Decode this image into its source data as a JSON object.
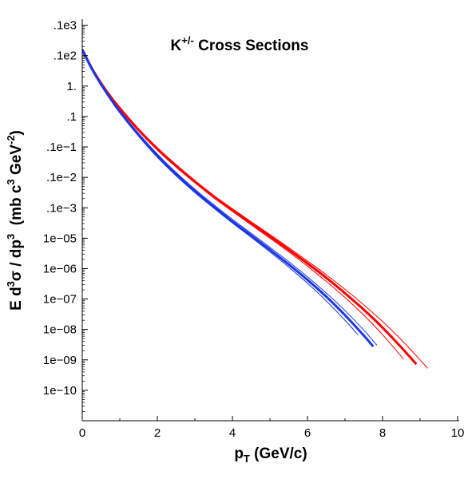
{
  "chart_data": {
    "type": "line",
    "title": "K",
    "title_superscript": "+/-",
    "title_suffix": " Cross Sections",
    "xlabel_main": "p",
    "xlabel_sub": "T",
    "xlabel_rest": " (GeV/c)",
    "ylabel_parts": [
      "E d",
      "3",
      "σ / dp",
      "3",
      "  (mb c",
      "3",
      " GeV",
      "-2",
      ")"
    ],
    "y_scale": "log",
    "xlim": [
      0,
      10
    ],
    "ylim_exponent": [
      -10,
      3.2
    ],
    "grid": false,
    "legend": "none",
    "x_ticks": [
      {
        "value": 0,
        "label": "0"
      },
      {
        "value": 2,
        "label": "2"
      },
      {
        "value": 4,
        "label": "4"
      },
      {
        "value": 6,
        "label": "6"
      },
      {
        "value": 8,
        "label": "8"
      },
      {
        "value": 10,
        "label": "10"
      }
    ],
    "y_ticks": [
      {
        "exp": 3,
        "label": ".1e3"
      },
      {
        "exp": 2,
        "label": ".1e2"
      },
      {
        "exp": 1,
        "label": "1."
      },
      {
        "exp": 0,
        "label": ".1"
      },
      {
        "exp": -1,
        "label": ".1e−1"
      },
      {
        "exp": -2,
        "label": ".1e−2"
      },
      {
        "exp": -3,
        "label": ".1e−3"
      },
      {
        "exp": -4,
        "label": "1e−05"
      },
      {
        "exp": -5,
        "label": "1e−06"
      },
      {
        "exp": -6,
        "label": "1e−07"
      },
      {
        "exp": -7,
        "label": "1e−08"
      },
      {
        "exp": -8,
        "label": "1e−09"
      },
      {
        "exp": -9,
        "label": "1e−10"
      }
    ],
    "series": [
      {
        "color": "#ff0000",
        "width": 1,
        "x": [
          0,
          0.25,
          0.5,
          0.75,
          1,
          1.5,
          2,
          2.5,
          3,
          3.5,
          4,
          4.5,
          5,
          5.5,
          6,
          6.5,
          7,
          7.5,
          8,
          8.5,
          8.55
        ],
        "log10": [
          2.2,
          1.6,
          1.1,
          0.65,
          0.25,
          -0.47,
          -1.1,
          -1.66,
          -2.18,
          -2.67,
          -3.12,
          -3.56,
          -4.0,
          -4.45,
          -4.92,
          -5.42,
          -5.95,
          -6.53,
          -7.17,
          -7.89,
          -7.97
        ]
      },
      {
        "color": "#ff0000",
        "width": 3,
        "x": [
          0,
          0.25,
          0.5,
          0.75,
          1,
          1.5,
          2,
          2.5,
          3,
          3.5,
          4,
          4.5,
          5,
          5.5,
          6,
          6.5,
          7,
          7.5,
          8,
          8.5,
          8.9
        ],
        "log10": [
          2.2,
          1.6,
          1.1,
          0.66,
          0.27,
          -0.44,
          -1.07,
          -1.63,
          -2.14,
          -2.63,
          -3.08,
          -3.51,
          -3.94,
          -4.38,
          -4.83,
          -5.3,
          -5.81,
          -6.35,
          -6.94,
          -7.59,
          -8.14
        ]
      },
      {
        "color": "#ff0000",
        "width": 1,
        "x": [
          0,
          0.25,
          0.5,
          0.75,
          1,
          1.5,
          2,
          2.5,
          3,
          3.5,
          4,
          4.5,
          5,
          5.5,
          6,
          6.5,
          7,
          7.5,
          8,
          8.5,
          9,
          9.2
        ],
        "log10": [
          2.2,
          1.61,
          1.12,
          0.68,
          0.3,
          -0.4,
          -1.02,
          -1.58,
          -2.1,
          -2.59,
          -3.03,
          -3.46,
          -3.88,
          -4.31,
          -4.75,
          -5.2,
          -5.68,
          -6.19,
          -6.74,
          -7.34,
          -8.0,
          -8.28
        ]
      },
      {
        "color": "#1a37e6",
        "width": 1,
        "x": [
          0,
          0.25,
          0.5,
          0.75,
          1,
          1.5,
          2,
          2.5,
          3,
          3.5,
          4,
          4.5,
          5,
          5.5,
          6,
          6.5,
          7,
          7.35
        ],
        "log10": [
          2.2,
          1.57,
          1.04,
          0.56,
          0.12,
          -0.65,
          -1.34,
          -1.95,
          -2.5,
          -3.01,
          -3.5,
          -3.97,
          -4.45,
          -4.95,
          -5.48,
          -6.06,
          -6.7,
          -7.18
        ]
      },
      {
        "color": "#1a37e6",
        "width": 3,
        "x": [
          0,
          0.25,
          0.5,
          0.75,
          1,
          1.5,
          2,
          2.5,
          3,
          3.5,
          4,
          4.5,
          5,
          5.5,
          6,
          6.5,
          7,
          7.5,
          7.75
        ],
        "log10": [
          2.2,
          1.58,
          1.06,
          0.59,
          0.16,
          -0.6,
          -1.29,
          -1.9,
          -2.45,
          -2.96,
          -3.45,
          -3.91,
          -4.38,
          -4.86,
          -5.37,
          -5.92,
          -6.53,
          -7.2,
          -7.56
        ]
      },
      {
        "color": "#1a37e6",
        "width": 1,
        "x": [
          0,
          0.25,
          0.5,
          0.75,
          1,
          1.5,
          2,
          2.5,
          3,
          3.5,
          4,
          4.5,
          5,
          5.5,
          6,
          6.5,
          7,
          7.5,
          7.85
        ],
        "log10": [
          2.2,
          1.59,
          1.08,
          0.62,
          0.2,
          -0.55,
          -1.23,
          -1.84,
          -2.39,
          -2.9,
          -3.38,
          -3.84,
          -4.3,
          -4.77,
          -5.27,
          -5.8,
          -6.38,
          -7.02,
          -7.52
        ]
      }
    ]
  }
}
